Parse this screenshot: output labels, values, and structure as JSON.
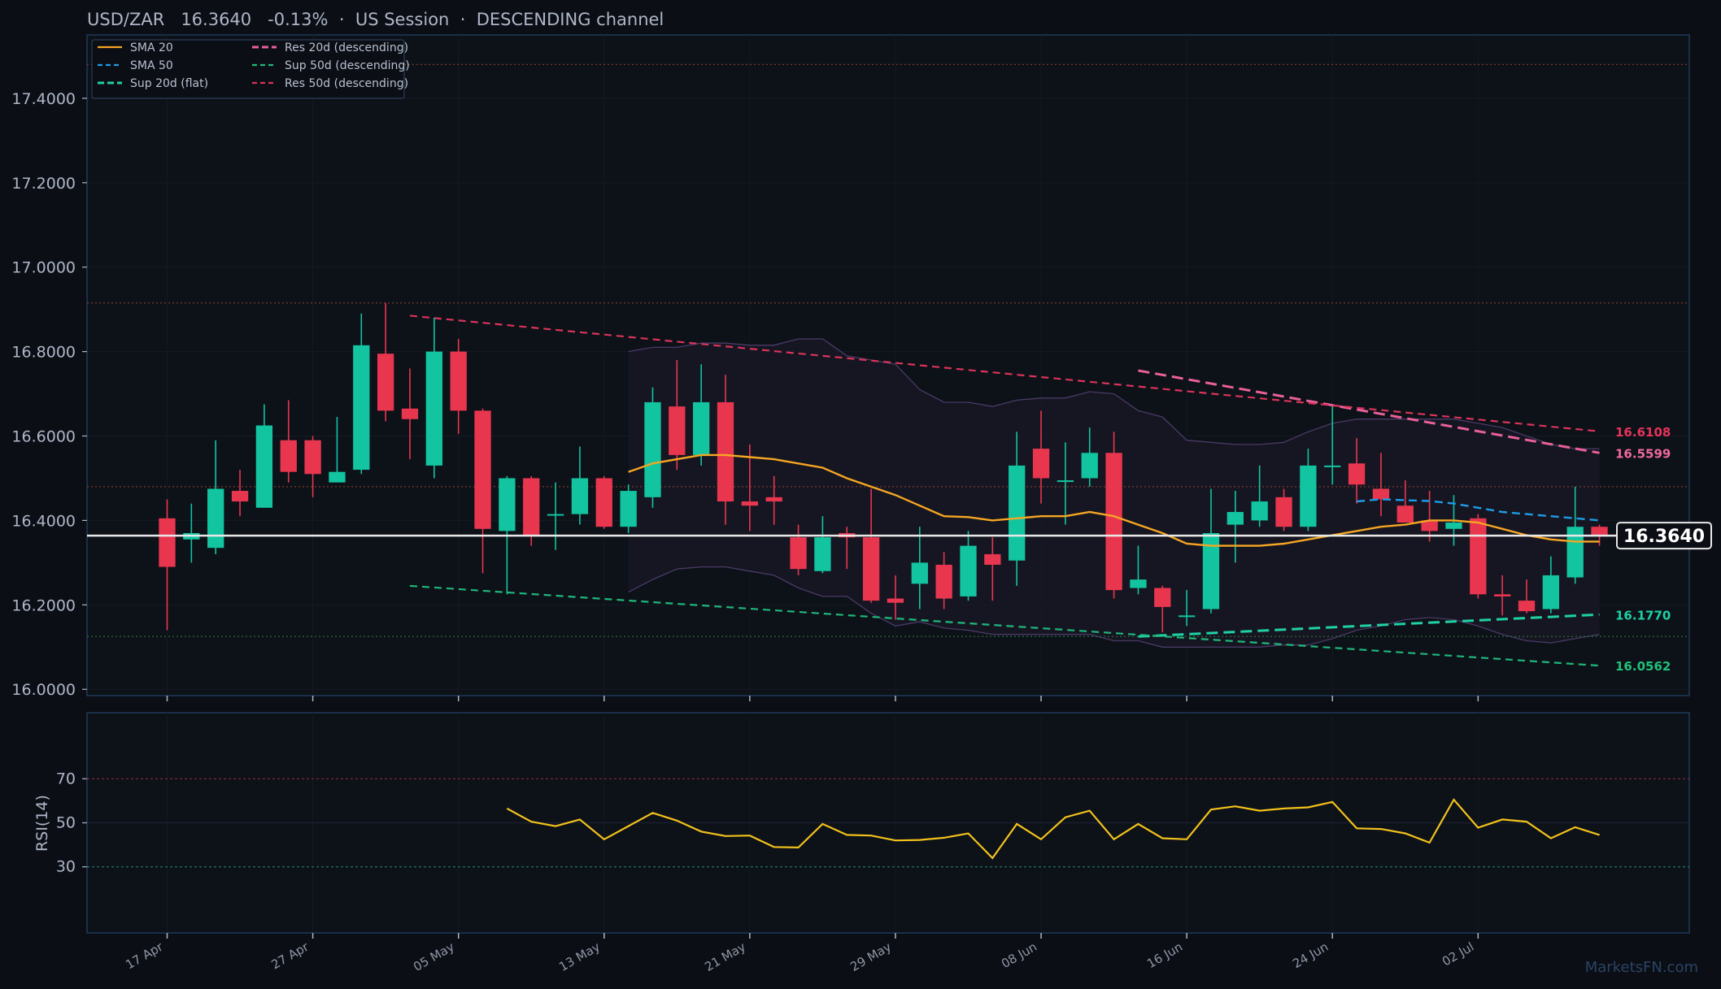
{
  "chart_data": {
    "type": "candlestick",
    "title": "USD/ZAR   16.3640   -0.13%  ·  US Session  ·  DESCENDING channel",
    "last_price": "16.3640",
    "watermark": "MarketsFN.com",
    "price_axis": {
      "ylim": [
        15.985,
        17.55
      ],
      "ticks": [
        "16.0000",
        "16.2000",
        "16.4000",
        "16.6000",
        "16.8000",
        "17.0000",
        "17.2000",
        "17.4000"
      ],
      "tick_values": [
        16.0,
        16.2,
        16.4,
        16.6,
        16.8,
        17.0,
        17.2,
        17.4
      ]
    },
    "x_tick_labels": [
      {
        "label": "17 Apr",
        "index": 0
      },
      {
        "label": "27 Apr",
        "index": 6
      },
      {
        "label": "05 May",
        "index": 12
      },
      {
        "label": "13 May",
        "index": 18
      },
      {
        "label": "21 May",
        "index": 24
      },
      {
        "label": "29 May",
        "index": 30
      },
      {
        "label": "08 Jun",
        "index": 36
      },
      {
        "label": "16 Jun",
        "index": 42
      },
      {
        "label": "24 Jun",
        "index": 48
      },
      {
        "label": "02 Jul",
        "index": 54
      }
    ],
    "x_range": [
      -3.3,
      62.7
    ],
    "candles": [
      {
        "o": 16.405,
        "h": 16.45,
        "l": 16.14,
        "c": 16.29
      },
      {
        "o": 16.355,
        "h": 16.44,
        "l": 16.3,
        "c": 16.37
      },
      {
        "o": 16.335,
        "h": 16.59,
        "l": 16.32,
        "c": 16.475
      },
      {
        "o": 16.47,
        "h": 16.52,
        "l": 16.41,
        "c": 16.445
      },
      {
        "o": 16.43,
        "h": 16.675,
        "l": 16.43,
        "c": 16.625
      },
      {
        "o": 16.59,
        "h": 16.685,
        "l": 16.49,
        "c": 16.515
      },
      {
        "o": 16.59,
        "h": 16.6,
        "l": 16.455,
        "c": 16.51
      },
      {
        "o": 16.49,
        "h": 16.645,
        "l": 16.49,
        "c": 16.515
      },
      {
        "o": 16.52,
        "h": 16.89,
        "l": 16.51,
        "c": 16.815
      },
      {
        "o": 16.795,
        "h": 16.915,
        "l": 16.635,
        "c": 16.66
      },
      {
        "o": 16.665,
        "h": 16.76,
        "l": 16.545,
        "c": 16.64
      },
      {
        "o": 16.53,
        "h": 16.88,
        "l": 16.5,
        "c": 16.8
      },
      {
        "o": 16.8,
        "h": 16.83,
        "l": 16.605,
        "c": 16.66
      },
      {
        "o": 16.66,
        "h": 16.665,
        "l": 16.275,
        "c": 16.38
      },
      {
        "o": 16.375,
        "h": 16.505,
        "l": 16.225,
        "c": 16.5
      },
      {
        "o": 16.5,
        "h": 16.505,
        "l": 16.34,
        "c": 16.365
      },
      {
        "o": 16.415,
        "h": 16.49,
        "l": 16.33,
        "c": 16.415
      },
      {
        "o": 16.415,
        "h": 16.575,
        "l": 16.39,
        "c": 16.5
      },
      {
        "o": 16.5,
        "h": 16.505,
        "l": 16.38,
        "c": 16.385
      },
      {
        "o": 16.385,
        "h": 16.485,
        "l": 16.37,
        "c": 16.47
      },
      {
        "o": 16.455,
        "h": 16.715,
        "l": 16.43,
        "c": 16.68
      },
      {
        "o": 16.67,
        "h": 16.78,
        "l": 16.52,
        "c": 16.555
      },
      {
        "o": 16.555,
        "h": 16.77,
        "l": 16.53,
        "c": 16.68
      },
      {
        "o": 16.68,
        "h": 16.745,
        "l": 16.39,
        "c": 16.445
      },
      {
        "o": 16.445,
        "h": 16.58,
        "l": 16.375,
        "c": 16.435
      },
      {
        "o": 16.455,
        "h": 16.505,
        "l": 16.39,
        "c": 16.445
      },
      {
        "o": 16.36,
        "h": 16.39,
        "l": 16.27,
        "c": 16.285
      },
      {
        "o": 16.28,
        "h": 16.41,
        "l": 16.275,
        "c": 16.36
      },
      {
        "o": 16.37,
        "h": 16.385,
        "l": 16.285,
        "c": 16.36
      },
      {
        "o": 16.36,
        "h": 16.475,
        "l": 16.205,
        "c": 16.21
      },
      {
        "o": 16.215,
        "h": 16.27,
        "l": 16.165,
        "c": 16.205
      },
      {
        "o": 16.25,
        "h": 16.385,
        "l": 16.19,
        "c": 16.3
      },
      {
        "o": 16.295,
        "h": 16.325,
        "l": 16.19,
        "c": 16.215
      },
      {
        "o": 16.22,
        "h": 16.375,
        "l": 16.21,
        "c": 16.34
      },
      {
        "o": 16.32,
        "h": 16.36,
        "l": 16.21,
        "c": 16.295
      },
      {
        "o": 16.305,
        "h": 16.61,
        "l": 16.245,
        "c": 16.53
      },
      {
        "o": 16.57,
        "h": 16.66,
        "l": 16.44,
        "c": 16.5
      },
      {
        "o": 16.495,
        "h": 16.585,
        "l": 16.39,
        "c": 16.495
      },
      {
        "o": 16.5,
        "h": 16.62,
        "l": 16.48,
        "c": 16.56
      },
      {
        "o": 16.56,
        "h": 16.61,
        "l": 16.215,
        "c": 16.235
      },
      {
        "o": 16.24,
        "h": 16.34,
        "l": 16.225,
        "c": 16.26
      },
      {
        "o": 16.24,
        "h": 16.245,
        "l": 16.135,
        "c": 16.195
      },
      {
        "o": 16.175,
        "h": 16.235,
        "l": 16.15,
        "c": 16.175
      },
      {
        "o": 16.19,
        "h": 16.475,
        "l": 16.18,
        "c": 16.37
      },
      {
        "o": 16.39,
        "h": 16.47,
        "l": 16.3,
        "c": 16.42
      },
      {
        "o": 16.4,
        "h": 16.53,
        "l": 16.385,
        "c": 16.445
      },
      {
        "o": 16.455,
        "h": 16.475,
        "l": 16.375,
        "c": 16.385
      },
      {
        "o": 16.385,
        "h": 16.57,
        "l": 16.375,
        "c": 16.53
      },
      {
        "o": 16.53,
        "h": 16.67,
        "l": 16.485,
        "c": 16.53
      },
      {
        "o": 16.535,
        "h": 16.595,
        "l": 16.44,
        "c": 16.485
      },
      {
        "o": 16.475,
        "h": 16.56,
        "l": 16.41,
        "c": 16.45
      },
      {
        "o": 16.435,
        "h": 16.495,
        "l": 16.395,
        "c": 16.395
      },
      {
        "o": 16.4,
        "h": 16.47,
        "l": 16.35,
        "c": 16.375
      },
      {
        "o": 16.38,
        "h": 16.46,
        "l": 16.34,
        "c": 16.395
      },
      {
        "o": 16.405,
        "h": 16.415,
        "l": 16.215,
        "c": 16.225
      },
      {
        "o": 16.225,
        "h": 16.27,
        "l": 16.175,
        "c": 16.22
      },
      {
        "o": 16.21,
        "h": 16.26,
        "l": 16.18,
        "c": 16.185
      },
      {
        "o": 16.19,
        "h": 16.315,
        "l": 16.18,
        "c": 16.27
      },
      {
        "o": 16.265,
        "h": 16.48,
        "l": 16.25,
        "c": 16.385
      },
      {
        "o": 16.385,
        "h": 16.39,
        "l": 16.34,
        "c": 16.364
      }
    ],
    "series": [
      {
        "name": "SMA 20",
        "style": "solid",
        "color": "#f5a623",
        "start": 19,
        "values": [
          16.515,
          16.535,
          16.545,
          16.555,
          16.555,
          16.55,
          16.545,
          16.535,
          16.525,
          16.5,
          16.48,
          16.46,
          16.435,
          16.41,
          16.408,
          16.4,
          16.405,
          16.41,
          16.41,
          16.42,
          16.41,
          16.39,
          16.37,
          16.345,
          16.34,
          16.34,
          16.34,
          16.345,
          16.355,
          16.365,
          16.375,
          16.385,
          16.39,
          16.4,
          16.4,
          16.395,
          16.38,
          16.365,
          16.355,
          16.35,
          16.35
        ]
      },
      {
        "name": "SMA 50",
        "style": "dashed",
        "color": "#1e9be6",
        "start": 49,
        "values": [
          16.445,
          16.45,
          16.448,
          16.446,
          16.44,
          16.43,
          16.42,
          16.415,
          16.41,
          16.405,
          16.4
        ]
      },
      {
        "name": "Sup 20d (flat)",
        "style": "dashed",
        "color": "#1fd1a5",
        "line": {
          "x1": 40,
          "y1": 16.125,
          "x2": 59,
          "y2": 16.177
        }
      },
      {
        "name": "Res 20d (descending)",
        "style": "dashed",
        "color": "#e8609a",
        "line": {
          "x1": 40,
          "y1": 16.755,
          "x2": 59,
          "y2": 16.56
        }
      },
      {
        "name": "Sup 50d (descending)",
        "style": "dashed",
        "color": "#1fb87a",
        "line": {
          "x1": 10,
          "y1": 16.245,
          "x2": 59,
          "y2": 16.056
        }
      },
      {
        "name": "Res 50d (descending)",
        "style": "dashed",
        "color": "#d9345a",
        "line": {
          "x1": 10,
          "y1": 16.885,
          "x2": 59,
          "y2": 16.611
        }
      }
    ],
    "bands": {
      "start": 19,
      "upper": [
        16.8,
        16.81,
        16.81,
        16.82,
        16.82,
        16.815,
        16.815,
        16.83,
        16.83,
        16.79,
        16.78,
        16.77,
        16.71,
        16.68,
        16.68,
        16.67,
        16.685,
        16.69,
        16.69,
        16.705,
        16.7,
        16.66,
        16.645,
        16.59,
        16.585,
        16.58,
        16.58,
        16.585,
        16.61,
        16.63,
        16.64,
        16.64,
        16.64,
        16.64,
        16.64,
        16.63,
        16.62,
        16.6,
        16.58,
        16.57,
        16.57
      ],
      "lower": [
        16.23,
        16.26,
        16.285,
        16.29,
        16.29,
        16.28,
        16.27,
        16.24,
        16.22,
        16.22,
        16.18,
        16.15,
        16.16,
        16.145,
        16.14,
        16.13,
        16.13,
        16.13,
        16.13,
        16.13,
        16.115,
        16.115,
        16.1,
        16.1,
        16.1,
        16.1,
        16.1,
        16.105,
        16.105,
        16.12,
        16.14,
        16.15,
        16.165,
        16.17,
        16.165,
        16.15,
        16.13,
        16.115,
        16.11,
        16.12,
        16.13
      ]
    },
    "reference_lines": [
      {
        "value": 17.48,
        "color": "#7a3a2a"
      },
      {
        "value": 16.915,
        "color": "#7a3a2a"
      },
      {
        "value": 16.48,
        "color": "#7a3a2a"
      },
      {
        "value": 16.125,
        "color": "#2a6a3a"
      }
    ],
    "level_labels": [
      {
        "text": "16.6108",
        "value": 16.6108,
        "color": "#e8335b"
      },
      {
        "text": "16.5599",
        "value": 16.5599,
        "color": "#ee6aa0"
      },
      {
        "text": "16.1770",
        "value": 16.177,
        "color": "#1fd1a5"
      },
      {
        "text": "16.0562",
        "value": 16.0562,
        "color": "#20c27a"
      }
    ],
    "rsi": {
      "ylabel": "RSI(14)",
      "ylim": [
        0,
        100
      ],
      "ticks": [
        "30",
        "50",
        "70"
      ],
      "tick_values": [
        30,
        50,
        70
      ],
      "start": 14,
      "values": [
        56.5,
        50.5,
        48.5,
        51.5,
        42.5,
        48.5,
        54.5,
        51,
        46,
        44,
        44.2,
        39,
        38.8,
        49.5,
        44.5,
        44.2,
        42,
        42.2,
        43.2,
        45.2,
        34,
        49.5,
        42.5,
        52.5,
        55.5,
        42.5,
        49.5,
        43,
        42.5,
        56,
        57.5,
        55.5,
        56.5,
        57,
        59.5,
        47.5,
        47.2,
        45.2,
        41,
        60.5,
        47.8,
        51.5,
        50.5,
        43,
        48,
        44.5
      ]
    },
    "legend": {
      "placement": "top-left",
      "entries": [
        "SMA 20",
        "Res 20d (descending)",
        "SMA 50",
        "Sup 50d (descending)",
        "Sup 20d (flat)",
        "Res 50d (descending)"
      ]
    }
  }
}
